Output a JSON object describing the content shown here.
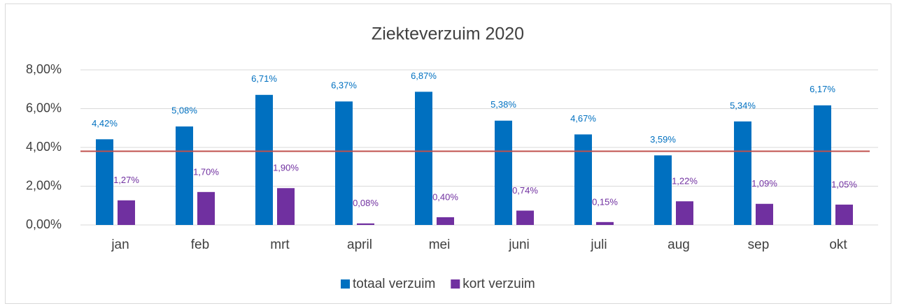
{
  "chart_data": {
    "type": "bar",
    "title": "Ziekteverzuim 2020",
    "categories": [
      "jan",
      "feb",
      "mrt",
      "april",
      "mei",
      "juni",
      "juli",
      "aug",
      "sep",
      "okt"
    ],
    "series": [
      {
        "name": "totaal verzuim",
        "color": "#0070c0",
        "values": [
          4.42,
          5.08,
          6.71,
          6.37,
          6.87,
          5.38,
          4.67,
          3.59,
          5.34,
          6.17
        ],
        "value_labels": [
          "4,42%",
          "5,08%",
          "6,71%",
          "6,37%",
          "6,87%",
          "5,38%",
          "4,67%",
          "3,59%",
          "5,34%",
          "6,17%"
        ]
      },
      {
        "name": "kort verzuim",
        "color": "#7030a0",
        "values": [
          1.27,
          1.7,
          1.9,
          0.08,
          0.4,
          0.74,
          0.15,
          1.22,
          1.09,
          1.05
        ],
        "value_labels": [
          "1,27%",
          "1,70%",
          "1,90%",
          "0,08%",
          "0,40%",
          "0,74%",
          "0,15%",
          "1,22%",
          "1,09%",
          "1,05%"
        ]
      }
    ],
    "reference_line": {
      "value": 3.8,
      "color": "#c0504d"
    },
    "ylim": [
      0,
      8
    ],
    "yticks": [
      {
        "value": 0,
        "label": "0,00%"
      },
      {
        "value": 2,
        "label": "2,00%"
      },
      {
        "value": 4,
        "label": "4,00%"
      },
      {
        "value": 6,
        "label": "6,00%"
      },
      {
        "value": 8,
        "label": "8,00%"
      }
    ],
    "grid": true,
    "legend": "bottom"
  }
}
